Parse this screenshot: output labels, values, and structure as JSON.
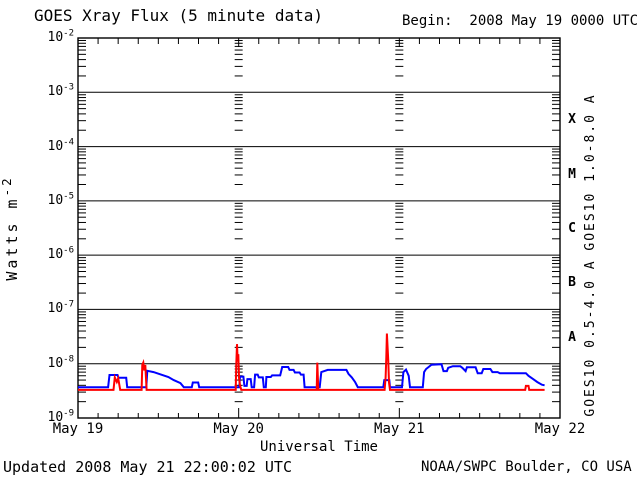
{
  "header": {
    "title": "GOES Xray Flux (5 minute data)",
    "begin": "Begin:  2008 May 19 0000 UTC"
  },
  "footer": {
    "updated": "Updated 2008 May 21 22:00:02 UTC",
    "source": "NOAA/SWPC Boulder, CO USA"
  },
  "axes": {
    "y": {
      "title_base": "Watts m",
      "title_exp": "-2",
      "ticks": [
        {
          "base": "10",
          "exp": "-2",
          "value": -2
        },
        {
          "base": "10",
          "exp": "-3",
          "value": -3
        },
        {
          "base": "10",
          "exp": "-4",
          "value": -4
        },
        {
          "base": "10",
          "exp": "-5",
          "value": -5
        },
        {
          "base": "10",
          "exp": "-6",
          "value": -6
        },
        {
          "base": "10",
          "exp": "-7",
          "value": -7
        },
        {
          "base": "10",
          "exp": "-8",
          "value": -8
        },
        {
          "base": "10",
          "exp": "-9",
          "value": -9
        }
      ]
    },
    "x": {
      "title": "Universal Time",
      "ticks": [
        {
          "hour": 0,
          "label": "May 19"
        },
        {
          "hour": 24,
          "label": "May 20"
        },
        {
          "hour": 48,
          "label": "May 21"
        },
        {
          "hour": 72,
          "label": "May 22"
        }
      ]
    }
  },
  "legend": {
    "red": "GOES10 1.0-8.0 A",
    "blue": "GOES10 0.5-4.0 A"
  },
  "colors": {
    "red_series": "#ff0000",
    "blue_series": "#0000ff",
    "axis": "#000000"
  },
  "chart_data": {
    "type": "line",
    "title": "GOES Xray Flux (5 minute data)",
    "xlabel": "Universal Time",
    "ylabel": "Watts m-2",
    "x_unit": "hours since 2008 May 19 0000 UTC",
    "xlim_hours": [
      0,
      72
    ],
    "ylim_log10": [
      -9,
      -2
    ],
    "grid": {
      "horizontal_decade_lines": true,
      "day_line_hours": [
        24,
        48
      ],
      "minor_time_tick_hours": 3
    },
    "flux_classes": [
      {
        "label": "X",
        "log_center": -3.5
      },
      {
        "label": "M",
        "log_center": -4.5
      },
      {
        "label": "C",
        "log_center": -5.5
      },
      {
        "label": "B",
        "log_center": -6.5
      },
      {
        "label": "A",
        "log_center": -7.5
      }
    ],
    "series": [
      {
        "name": "GOES10 0.5-4.0 A",
        "color": "#0000ff",
        "points": [
          [
            0,
            3.7e-09
          ],
          [
            4.5,
            3.7e-09
          ],
          [
            4.7,
            6.2e-09
          ],
          [
            5.9,
            6.2e-09
          ],
          [
            6.05,
            5.5e-09
          ],
          [
            7.2,
            5.5e-09
          ],
          [
            7.35,
            3.7e-09
          ],
          [
            10.2,
            3.7e-09
          ],
          [
            10.35,
            7.4e-09
          ],
          [
            11.3,
            7e-09
          ],
          [
            12.4,
            6.3e-09
          ],
          [
            13.5,
            5.7e-09
          ],
          [
            14.3,
            5e-09
          ],
          [
            15.3,
            4.4e-09
          ],
          [
            15.8,
            3.7e-09
          ],
          [
            17.0,
            3.7e-09
          ],
          [
            17.15,
            4.5e-09
          ],
          [
            17.95,
            4.5e-09
          ],
          [
            18.1,
            3.7e-09
          ],
          [
            24.1,
            3.7e-09
          ],
          [
            24.2,
            5.8e-09
          ],
          [
            24.7,
            5.8e-09
          ],
          [
            24.85,
            3.9e-09
          ],
          [
            25.2,
            3.9e-09
          ],
          [
            25.3,
            5.2e-09
          ],
          [
            25.8,
            5.2e-09
          ],
          [
            25.95,
            3.7e-09
          ],
          [
            26.3,
            3.7e-09
          ],
          [
            26.45,
            6.3e-09
          ],
          [
            26.85,
            6.3e-09
          ],
          [
            27.0,
            5.6e-09
          ],
          [
            27.6,
            5.6e-09
          ],
          [
            27.75,
            3.7e-09
          ],
          [
            28.05,
            3.7e-09
          ],
          [
            28.15,
            5.7e-09
          ],
          [
            28.8,
            5.7e-09
          ],
          [
            29.0,
            6.1e-09
          ],
          [
            30.2,
            6.1e-09
          ],
          [
            30.5,
            8.7e-09
          ],
          [
            31.4,
            8.7e-09
          ],
          [
            31.6,
            7.7e-09
          ],
          [
            32.2,
            7.7e-09
          ],
          [
            32.4,
            6.9e-09
          ],
          [
            33.1,
            6.9e-09
          ],
          [
            33.3,
            6.3e-09
          ],
          [
            33.7,
            6.3e-09
          ],
          [
            33.85,
            3.7e-09
          ],
          [
            36.1,
            3.7e-09
          ],
          [
            36.35,
            7e-09
          ],
          [
            37.3,
            7.7e-09
          ],
          [
            40.1,
            7.7e-09
          ],
          [
            40.4,
            6.5e-09
          ],
          [
            40.9,
            5.6e-09
          ],
          [
            41.4,
            4.6e-09
          ],
          [
            41.8,
            3.7e-09
          ],
          [
            45.6,
            3.7e-09
          ],
          [
            45.75,
            5e-09
          ],
          [
            46.5,
            5e-09
          ],
          [
            46.6,
            3.7e-09
          ],
          [
            48.4,
            3.7e-09
          ],
          [
            48.6,
            7e-09
          ],
          [
            49.0,
            7.8e-09
          ],
          [
            49.4,
            6e-09
          ],
          [
            49.6,
            3.7e-09
          ],
          [
            51.5,
            3.7e-09
          ],
          [
            51.7,
            7e-09
          ],
          [
            52.0,
            8e-09
          ],
          [
            52.8,
            9.6e-09
          ],
          [
            54.3,
            9.8e-09
          ],
          [
            54.6,
            7.3e-09
          ],
          [
            55.1,
            7.3e-09
          ],
          [
            55.3,
            8.4e-09
          ],
          [
            56.0,
            9e-09
          ],
          [
            57.1,
            9e-09
          ],
          [
            57.4,
            8.4e-09
          ],
          [
            57.9,
            7.3e-09
          ],
          [
            58.1,
            8.6e-09
          ],
          [
            59.4,
            8.6e-09
          ],
          [
            59.7,
            6.7e-09
          ],
          [
            60.3,
            6.7e-09
          ],
          [
            60.55,
            8e-09
          ],
          [
            61.6,
            8e-09
          ],
          [
            61.9,
            7e-09
          ],
          [
            62.7,
            7e-09
          ],
          [
            63.0,
            6.7e-09
          ],
          [
            66.9,
            6.7e-09
          ],
          [
            67.3,
            6e-09
          ],
          [
            67.9,
            5.3e-09
          ],
          [
            68.6,
            4.6e-09
          ],
          [
            69.3,
            4.1e-09
          ],
          [
            69.7,
            4e-09
          ]
        ]
      },
      {
        "name": "GOES10 1.0-8.0 A",
        "color": "#ff0000",
        "points": [
          [
            0,
            3.3e-09
          ],
          [
            5.3,
            3.3e-09
          ],
          [
            5.5,
            5.6e-09
          ],
          [
            5.8,
            4.6e-09
          ],
          [
            6.0,
            5.4e-09
          ],
          [
            6.3,
            3.3e-09
          ],
          [
            9.5,
            3.3e-09
          ],
          [
            9.6,
            9.5e-09
          ],
          [
            9.75,
            1.05e-08
          ],
          [
            9.9,
            7.5e-09
          ],
          [
            10.05,
            9.5e-09
          ],
          [
            10.25,
            3.3e-09
          ],
          [
            23.55,
            3.3e-09
          ],
          [
            23.65,
            1e-08
          ],
          [
            23.75,
            2.3e-08
          ],
          [
            23.85,
            1.1e-08
          ],
          [
            23.95,
            1.5e-08
          ],
          [
            24.05,
            5.5e-09
          ],
          [
            24.2,
            4e-09
          ],
          [
            24.4,
            3.3e-09
          ],
          [
            35.65,
            3.3e-09
          ],
          [
            35.75,
            1.05e-08
          ],
          [
            35.9,
            3.3e-09
          ],
          [
            45.8,
            3.3e-09
          ],
          [
            45.95,
            5.5e-09
          ],
          [
            46.05,
            1.3e-08
          ],
          [
            46.15,
            3.6e-08
          ],
          [
            46.35,
            1.1e-08
          ],
          [
            46.45,
            4.5e-09
          ],
          [
            46.6,
            3.3e-09
          ],
          [
            66.8,
            3.3e-09
          ],
          [
            66.9,
            3.9e-09
          ],
          [
            67.3,
            3.9e-09
          ],
          [
            67.4,
            3.3e-09
          ],
          [
            69.7,
            3.3e-09
          ]
        ]
      }
    ]
  }
}
